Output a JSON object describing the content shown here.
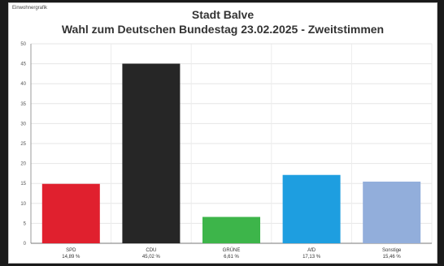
{
  "corner_label": "Einwohnergrafik",
  "chart_data": {
    "type": "bar",
    "title": "Stadt Balve",
    "subtitle": "Wahl zum Deutschen Bundestag 23.02.2025  - Zweitstimmen",
    "xlabel": "",
    "ylabel": "",
    "ylim": [
      0,
      50
    ],
    "yticks": [
      0,
      5,
      10,
      15,
      20,
      25,
      30,
      35,
      40,
      45,
      50
    ],
    "grid": true,
    "categories": [
      "SPD",
      "CDU",
      "GRÜNE",
      "AfD",
      "Sonstige"
    ],
    "values": [
      14.89,
      45.02,
      6.61,
      17.13,
      15.46
    ],
    "value_labels": [
      "14,89 %",
      "45,02 %",
      "6,61 %",
      "17,13 %",
      "15,46 %"
    ],
    "colors": [
      "#e0202e",
      "#262626",
      "#3db54a",
      "#1e9ee0",
      "#92aedb"
    ]
  }
}
